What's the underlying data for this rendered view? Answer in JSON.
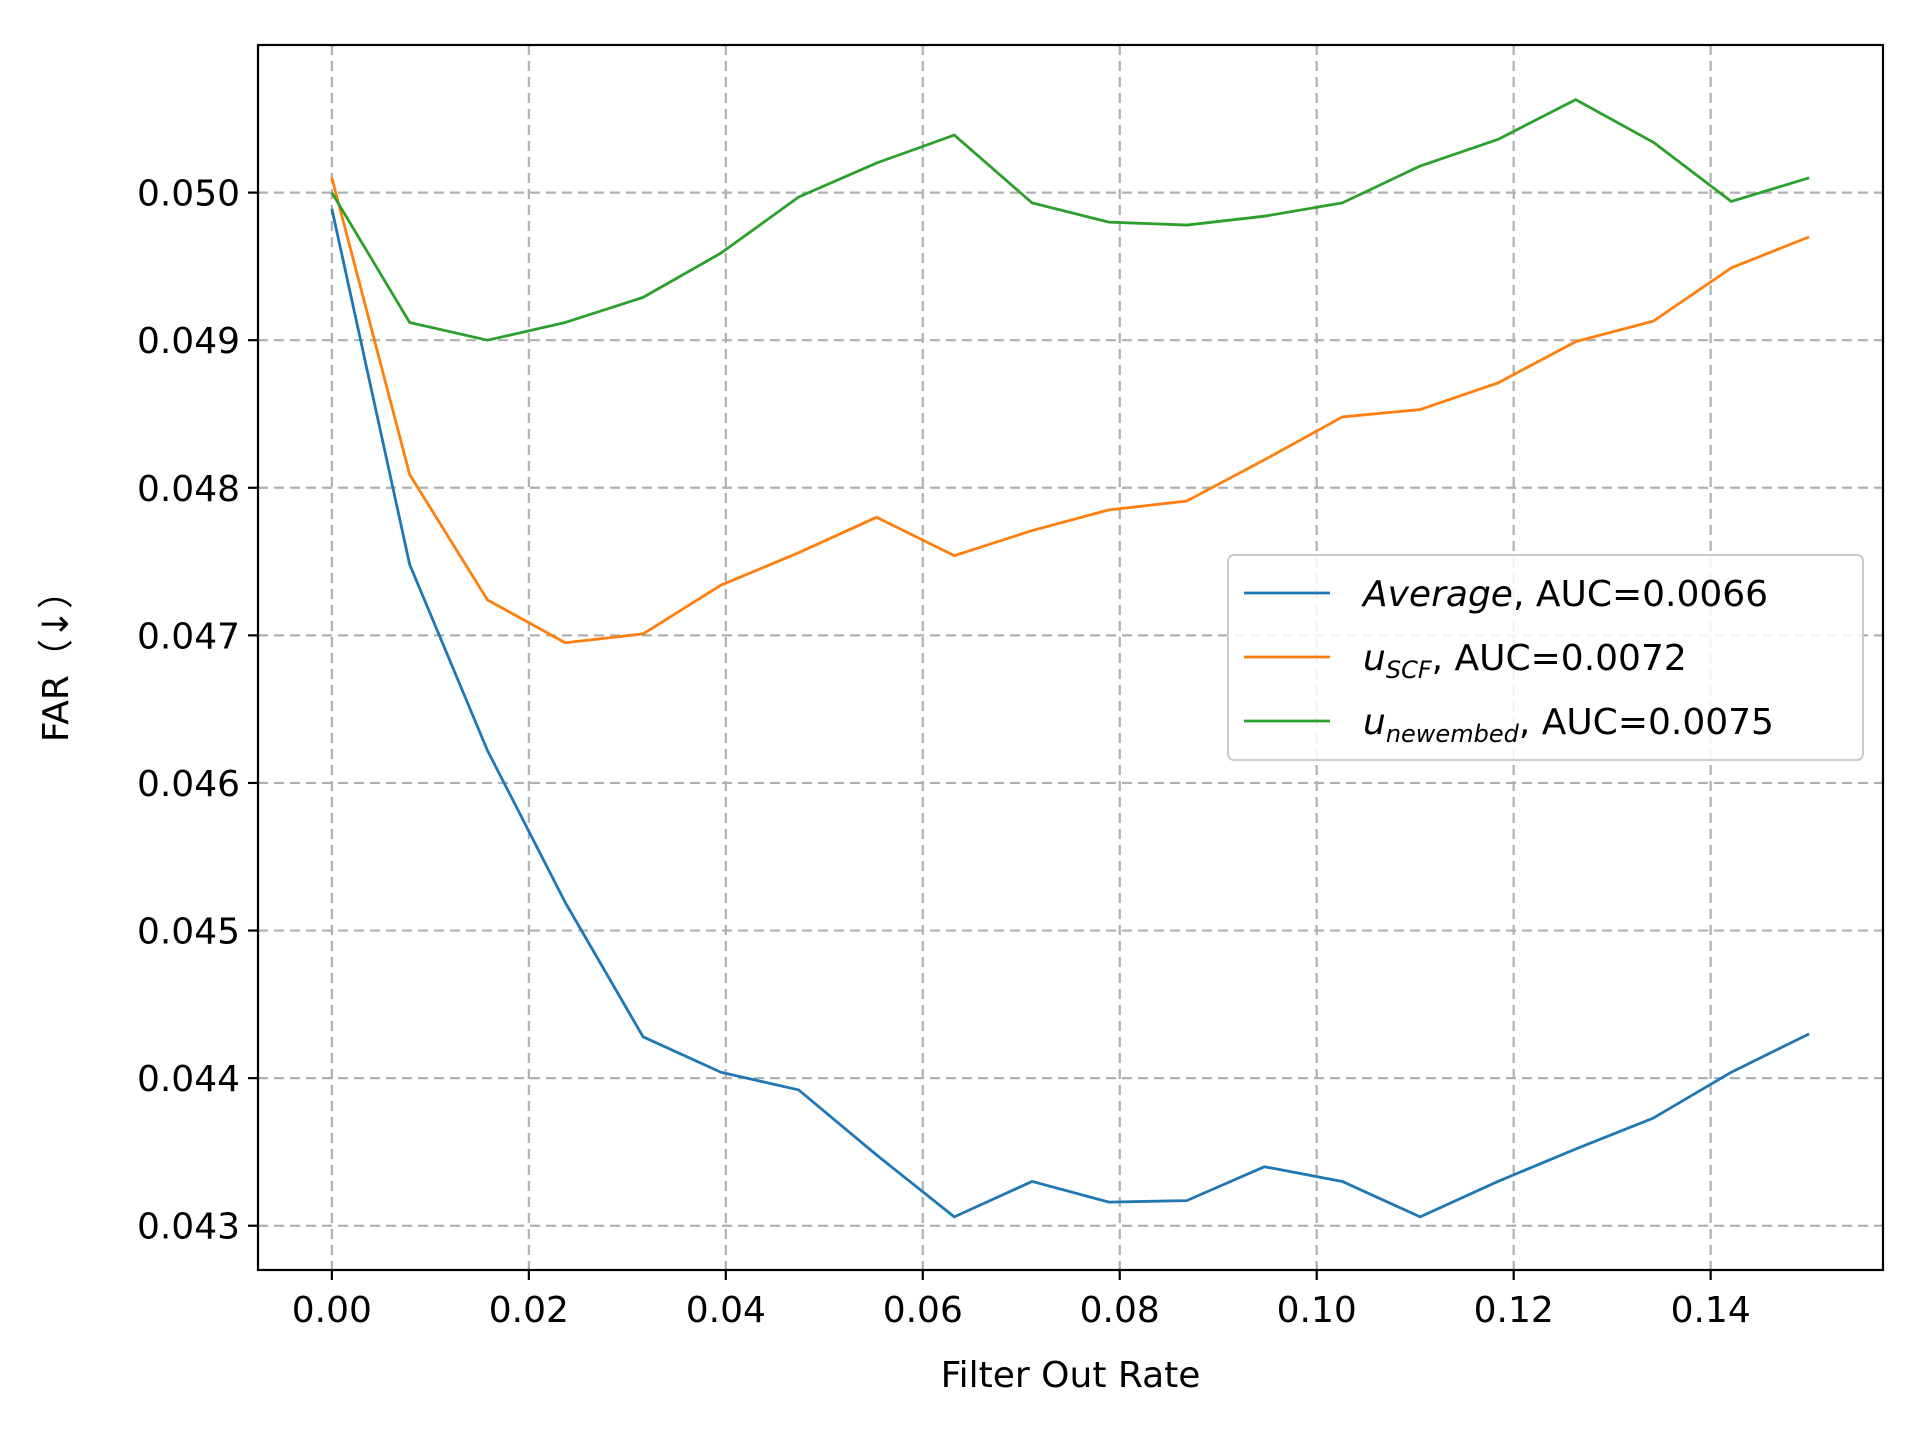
{
  "chart_data": {
    "type": "line",
    "title": "",
    "xlabel": "Filter Out Rate",
    "ylabel": "FAR（↓）",
    "xlim": [
      -0.0075,
      0.1575
    ],
    "ylim": [
      0.0427,
      0.051
    ],
    "xticks": [
      0.0,
      0.02,
      0.04,
      0.06,
      0.08,
      0.1,
      0.12,
      0.14
    ],
    "xtick_labels": [
      "0.00",
      "0.02",
      "0.04",
      "0.06",
      "0.08",
      "0.10",
      "0.12",
      "0.14"
    ],
    "yticks": [
      0.043,
      0.044,
      0.045,
      0.046,
      0.047,
      0.048,
      0.049,
      0.05
    ],
    "ytick_labels": [
      "0.043",
      "0.044",
      "0.045",
      "0.046",
      "0.047",
      "0.048",
      "0.049",
      "0.050"
    ],
    "grid": true,
    "legend_position": "center-right",
    "x": [
      0.0,
      0.0079,
      0.0158,
      0.0237,
      0.0316,
      0.0395,
      0.0474,
      0.0553,
      0.0632,
      0.0711,
      0.0789,
      0.0868,
      0.0947,
      0.1026,
      0.1105,
      0.1184,
      0.1263,
      0.1342,
      0.1421,
      0.15
    ],
    "series": [
      {
        "name": "Average",
        "legend_italic": "Average",
        "legend_sub": "",
        "legend_rest": ", AUC=0.0066",
        "color": "#1f77b4",
        "values": [
          0.04989,
          0.04748,
          0.04622,
          0.04519,
          0.04428,
          0.04404,
          0.04392,
          0.04348,
          0.04306,
          0.0433,
          0.04316,
          0.04317,
          0.0434,
          0.0433,
          0.04306,
          0.0433,
          0.04352,
          0.04373,
          0.04404,
          0.0443
        ]
      },
      {
        "name": "u_SCF",
        "legend_italic": "u",
        "legend_sub": "SCF",
        "legend_rest": ", AUC=0.0072",
        "color": "#ff7f0e",
        "values": [
          0.0501,
          0.04809,
          0.04724,
          0.04695,
          0.04701,
          0.04734,
          0.04756,
          0.0478,
          0.04754,
          0.04771,
          0.04785,
          0.04791,
          0.04819,
          0.04848,
          0.04853,
          0.04871,
          0.04899,
          0.04913,
          0.04949,
          0.0497
        ]
      },
      {
        "name": "u_newembed",
        "legend_italic": "u",
        "legend_sub": "newembed",
        "legend_rest": ", AUC=0.0075",
        "color": "#2ca02c",
        "values": [
          0.05,
          0.04912,
          0.049,
          0.04912,
          0.04929,
          0.04959,
          0.04997,
          0.0502,
          0.05039,
          0.04993,
          0.0498,
          0.04978,
          0.04984,
          0.04993,
          0.05018,
          0.05036,
          0.05063,
          0.05034,
          0.04994,
          0.0501
        ]
      }
    ]
  }
}
